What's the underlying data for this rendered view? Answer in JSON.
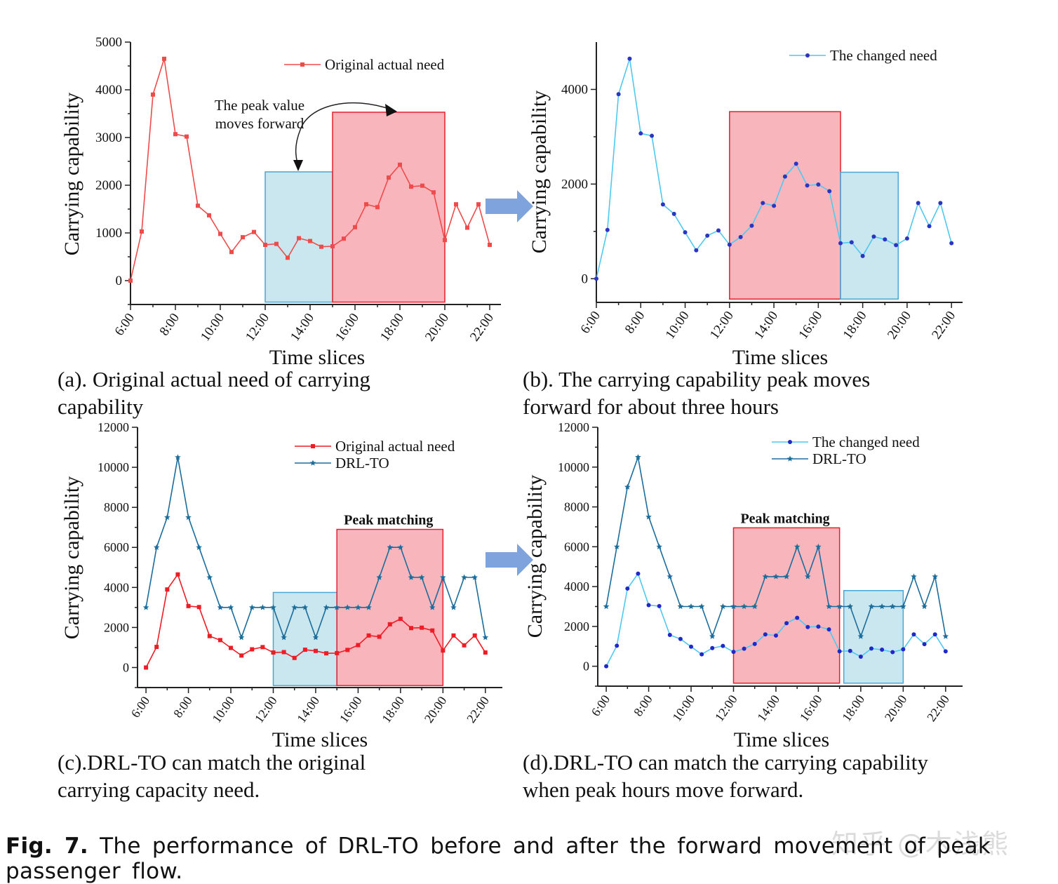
{
  "chart_data": [
    {
      "id": "a",
      "type": "line",
      "xlabel": "Time slices",
      "ylabel": "Carrying capability",
      "x_ticks": [
        "6:00",
        "8:00",
        "10:00",
        "12:00",
        "14:00",
        "16:00",
        "18:00",
        "20:00",
        "22:00"
      ],
      "xlim": [
        6,
        22.5
      ],
      "ylim": [
        -500,
        5000
      ],
      "y_ticks": [
        0,
        1000,
        2000,
        3000,
        4000,
        5000
      ],
      "legend": "top-right",
      "shaded_regions": [
        {
          "color": "#add8e6",
          "x": [
            12,
            15
          ],
          "y": [
            -450,
            2280
          ]
        },
        {
          "color": "#f7959f",
          "x": [
            15,
            20
          ],
          "y": [
            -450,
            3530
          ]
        }
      ],
      "annotation": {
        "lines": [
          "The peak value",
          "moves forward"
        ]
      },
      "series": [
        {
          "name": "Original actual need",
          "color": "#ef4b4b",
          "marker": "square",
          "x": [
            6,
            6.5,
            7,
            7.5,
            8,
            8.5,
            9,
            9.5,
            10,
            10.5,
            11,
            11.5,
            12,
            12.5,
            13,
            13.5,
            14,
            14.5,
            15,
            15.5,
            16,
            16.5,
            17,
            17.5,
            18,
            18.5,
            19,
            19.5,
            20,
            20.5,
            21,
            21.5,
            22
          ],
          "values": [
            0,
            1030,
            3900,
            4650,
            3070,
            3020,
            1570,
            1370,
            980,
            600,
            910,
            1020,
            750,
            770,
            480,
            890,
            830,
            710,
            720,
            880,
            1120,
            1600,
            1540,
            2160,
            2430,
            1970,
            1990,
            1850,
            850,
            1600,
            1110,
            1600,
            750
          ]
        }
      ]
    },
    {
      "id": "b",
      "type": "line",
      "xlabel": "Time slices",
      "ylabel": "Carrying capability",
      "x_ticks": [
        "6:00",
        "8:00",
        "10:00",
        "12:00",
        "14:00",
        "16:00",
        "18:00",
        "20:00",
        "22:00"
      ],
      "xlim": [
        6,
        22.5
      ],
      "ylim": [
        -500,
        5000
      ],
      "y_ticks": [
        0,
        2000,
        4000
      ],
      "legend": "top-right",
      "shaded_regions": [
        {
          "color": "#f7959f",
          "x": [
            12,
            17
          ],
          "y": [
            -430,
            3530
          ]
        },
        {
          "color": "#add8e6",
          "x": [
            17,
            19.6
          ],
          "y": [
            -430,
            2250
          ]
        }
      ],
      "series": [
        {
          "name": "The changed need",
          "color": "#4ec9f0",
          "marker": "circle",
          "marker_color": "#2b35c4",
          "x": [
            6,
            6.5,
            7,
            7.5,
            8,
            8.5,
            9,
            9.5,
            10,
            10.5,
            11,
            11.5,
            12,
            12.5,
            13,
            13.5,
            14,
            14.5,
            15,
            15.5,
            16,
            16.5,
            17,
            17.5,
            18,
            18.5,
            19,
            19.5,
            20,
            20.5,
            21,
            21.5,
            22
          ],
          "values": [
            0,
            1030,
            3900,
            4650,
            3070,
            3020,
            1570,
            1370,
            980,
            600,
            910,
            1020,
            720,
            880,
            1120,
            1600,
            1540,
            2160,
            2430,
            1970,
            1990,
            1850,
            750,
            770,
            480,
            890,
            830,
            710,
            850,
            1600,
            1110,
            1600,
            750
          ]
        }
      ]
    },
    {
      "id": "c",
      "type": "line",
      "xlabel": "Time slices",
      "ylabel": "Carrying capability",
      "x_ticks": [
        "6:00",
        "8:00",
        "10:00",
        "12:00",
        "14:00",
        "16:00",
        "18:00",
        "20:00",
        "22:00"
      ],
      "xlim": [
        5.6,
        22.8
      ],
      "ylim": [
        -1000,
        12000
      ],
      "y_ticks": [
        0,
        2000,
        4000,
        6000,
        8000,
        10000,
        12000
      ],
      "legend": "top-right",
      "shaded_regions": [
        {
          "color": "#add8e6",
          "x": [
            12,
            15
          ],
          "y": [
            -900,
            3750
          ]
        },
        {
          "color": "#f7959f",
          "x": [
            15,
            20
          ],
          "y": [
            -900,
            6900
          ]
        }
      ],
      "region_label": "Peak matching",
      "series": [
        {
          "name": "Original actual need",
          "color": "#ee1c25",
          "marker": "square",
          "x": [
            6,
            6.5,
            7,
            7.5,
            8,
            8.5,
            9,
            9.5,
            10,
            10.5,
            11,
            11.5,
            12,
            12.5,
            13,
            13.5,
            14,
            14.5,
            15,
            15.5,
            16,
            16.5,
            17,
            17.5,
            18,
            18.5,
            19,
            19.5,
            20,
            20.5,
            21,
            21.5,
            22
          ],
          "values": [
            0,
            1030,
            3900,
            4650,
            3070,
            3020,
            1570,
            1370,
            980,
            600,
            910,
            1020,
            750,
            770,
            480,
            890,
            830,
            710,
            720,
            880,
            1120,
            1600,
            1540,
            2160,
            2430,
            1970,
            1990,
            1850,
            850,
            1600,
            1110,
            1600,
            750
          ]
        },
        {
          "name": "DRL-TO",
          "color": "#1b6d9c",
          "marker": "star",
          "x": [
            6,
            6.5,
            7,
            7.5,
            8,
            8.5,
            9,
            9.5,
            10,
            10.5,
            11,
            11.5,
            12,
            12.5,
            13,
            13.5,
            14,
            14.5,
            15,
            15.5,
            16,
            16.5,
            17,
            17.5,
            18,
            18.5,
            19,
            19.5,
            20,
            20.5,
            21,
            21.5,
            22
          ],
          "values": [
            3000,
            6000,
            7500,
            10500,
            7500,
            6000,
            4500,
            3000,
            3000,
            1500,
            3000,
            3000,
            3000,
            1500,
            3000,
            3000,
            1500,
            3000,
            3000,
            3000,
            3000,
            3000,
            4500,
            6000,
            6000,
            4500,
            4500,
            3000,
            4500,
            3000,
            4500,
            4500,
            1500
          ]
        }
      ]
    },
    {
      "id": "d",
      "type": "line",
      "xlabel": "Time slices",
      "ylabel": "Carrying capability",
      "x_ticks": [
        "6:00",
        "8:00",
        "10:00",
        "12:00",
        "14:00",
        "16:00",
        "18:00",
        "20:00",
        "22:00"
      ],
      "xlim": [
        5.6,
        22.8
      ],
      "ylim": [
        -1000,
        12000
      ],
      "y_ticks": [
        0,
        2000,
        4000,
        6000,
        8000,
        10000,
        12000
      ],
      "legend": "top-right",
      "shaded_regions": [
        {
          "color": "#f7959f",
          "x": [
            12,
            17
          ],
          "y": [
            -850,
            6950
          ]
        },
        {
          "color": "#add8e6",
          "x": [
            17.2,
            20
          ],
          "y": [
            -850,
            3800
          ]
        }
      ],
      "region_label": "Peak matching",
      "series": [
        {
          "name": "The changed need",
          "color": "#4ec9f0",
          "marker": "circle",
          "marker_color": "#1f28c8",
          "x": [
            6,
            6.5,
            7,
            7.5,
            8,
            8.5,
            9,
            9.5,
            10,
            10.5,
            11,
            11.5,
            12,
            12.5,
            13,
            13.5,
            14,
            14.5,
            15,
            15.5,
            16,
            16.5,
            17,
            17.5,
            18,
            18.5,
            19,
            19.5,
            20,
            20.5,
            21,
            21.5,
            22
          ],
          "values": [
            0,
            1030,
            3900,
            4650,
            3070,
            3020,
            1570,
            1370,
            980,
            600,
            910,
            1020,
            720,
            880,
            1120,
            1600,
            1540,
            2160,
            2430,
            1970,
            1990,
            1850,
            750,
            770,
            480,
            890,
            830,
            710,
            850,
            1600,
            1110,
            1600,
            750
          ]
        },
        {
          "name": "DRL-TO",
          "color": "#1b6d9c",
          "marker": "star",
          "x": [
            6,
            6.5,
            7,
            7.5,
            8,
            8.5,
            9,
            9.5,
            10,
            10.5,
            11,
            11.5,
            12,
            12.5,
            13,
            13.5,
            14,
            14.5,
            15,
            15.5,
            16,
            16.5,
            17,
            17.5,
            18,
            18.5,
            19,
            19.5,
            20,
            20.5,
            21,
            21.5,
            22
          ],
          "values": [
            3000,
            6000,
            9000,
            10500,
            7500,
            6000,
            4500,
            3000,
            3000,
            3000,
            1500,
            3000,
            3000,
            3000,
            3000,
            4500,
            4500,
            4500,
            6000,
            4500,
            6000,
            3000,
            3000,
            3000,
            1500,
            3000,
            3000,
            3000,
            3000,
            4500,
            3000,
            4500,
            1500
          ]
        }
      ]
    }
  ],
  "captions": {
    "a_line1": "(a). Original actual need of carrying",
    "a_line2": "capability",
    "b_line1": "(b). The carrying capability peak moves",
    "b_line2": "forward for about three hours",
    "c_line1": "(c).DRL-TO can match the original",
    "c_line2": "carrying capacity need.",
    "d_line1": "(d).DRL-TO can match the carrying capability",
    "d_line2": "when peak hours move forward."
  },
  "figure_caption": {
    "label": "Fig. 7.",
    "text": "The performance of DRL-TO before and after the forward movement of peak passenger flow."
  },
  "watermark": "知乎 @木浅熊",
  "colors": {
    "arrow": "#7fa3dc",
    "axis": "#222222"
  }
}
